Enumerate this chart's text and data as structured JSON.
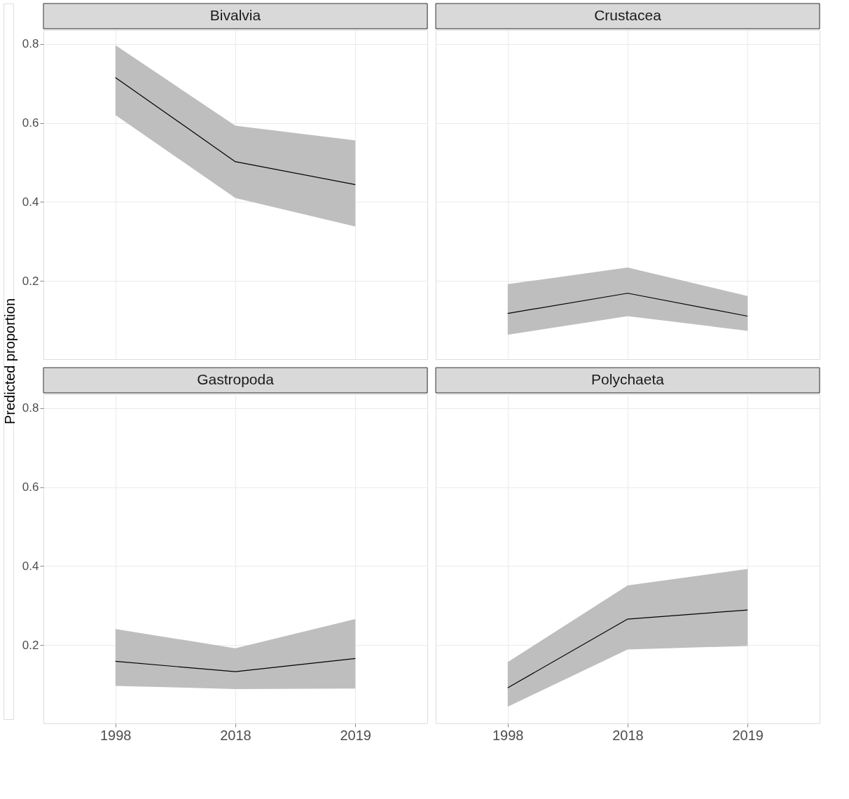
{
  "chart_data": [
    {
      "type": "line",
      "title": "Bivalvia",
      "ylabel": "Predicted proportion",
      "categories": [
        "1998",
        "2018",
        "2019"
      ],
      "ylim": [
        0.002,
        0.835
      ],
      "yticks": [
        0.2,
        0.4,
        0.6,
        0.8
      ],
      "grid": true,
      "tick_labels": "y",
      "series": [
        {
          "color": "#000000",
          "values": [
            0.715,
            0.502,
            0.444
          ],
          "lower": [
            0.62,
            0.41,
            0.338
          ],
          "upper": [
            0.797,
            0.593,
            0.556
          ]
        }
      ]
    },
    {
      "type": "line",
      "title": "Crustacea",
      "categories": [
        "1998",
        "2018",
        "2019"
      ],
      "ylim": [
        0.002,
        0.835
      ],
      "yticks": [
        0.2,
        0.4,
        0.6,
        0.8
      ],
      "grid": true,
      "tick_labels": false,
      "series": [
        {
          "color": "#000000",
          "values": [
            0.118,
            0.169,
            0.111
          ],
          "lower": [
            0.064,
            0.111,
            0.074
          ],
          "upper": [
            0.192,
            0.234,
            0.162
          ]
        }
      ]
    },
    {
      "type": "line",
      "title": "Gastropoda",
      "categories": [
        "1998",
        "2018",
        "2019"
      ],
      "ylim": [
        0.002,
        0.835
      ],
      "yticks": [
        0.2,
        0.4,
        0.6,
        0.8
      ],
      "grid": true,
      "series": [
        {
          "color": "#000000",
          "values": [
            0.159,
            0.133,
            0.166
          ],
          "lower": [
            0.097,
            0.089,
            0.09
          ],
          "upper": [
            0.241,
            0.192,
            0.266
          ]
        }
      ]
    },
    {
      "type": "line",
      "title": "Polychaeta",
      "categories": [
        "1998",
        "2018",
        "2019"
      ],
      "ylim": [
        0.002,
        0.835
      ],
      "yticks": [
        0.2,
        0.4,
        0.6,
        0.8
      ],
      "grid": true,
      "tick_labels": "x",
      "series": [
        {
          "color": "#000000",
          "values": [
            0.092,
            0.266,
            0.289
          ],
          "lower": [
            0.044,
            0.189,
            0.198
          ],
          "upper": [
            0.157,
            0.351,
            0.393
          ]
        }
      ]
    }
  ]
}
